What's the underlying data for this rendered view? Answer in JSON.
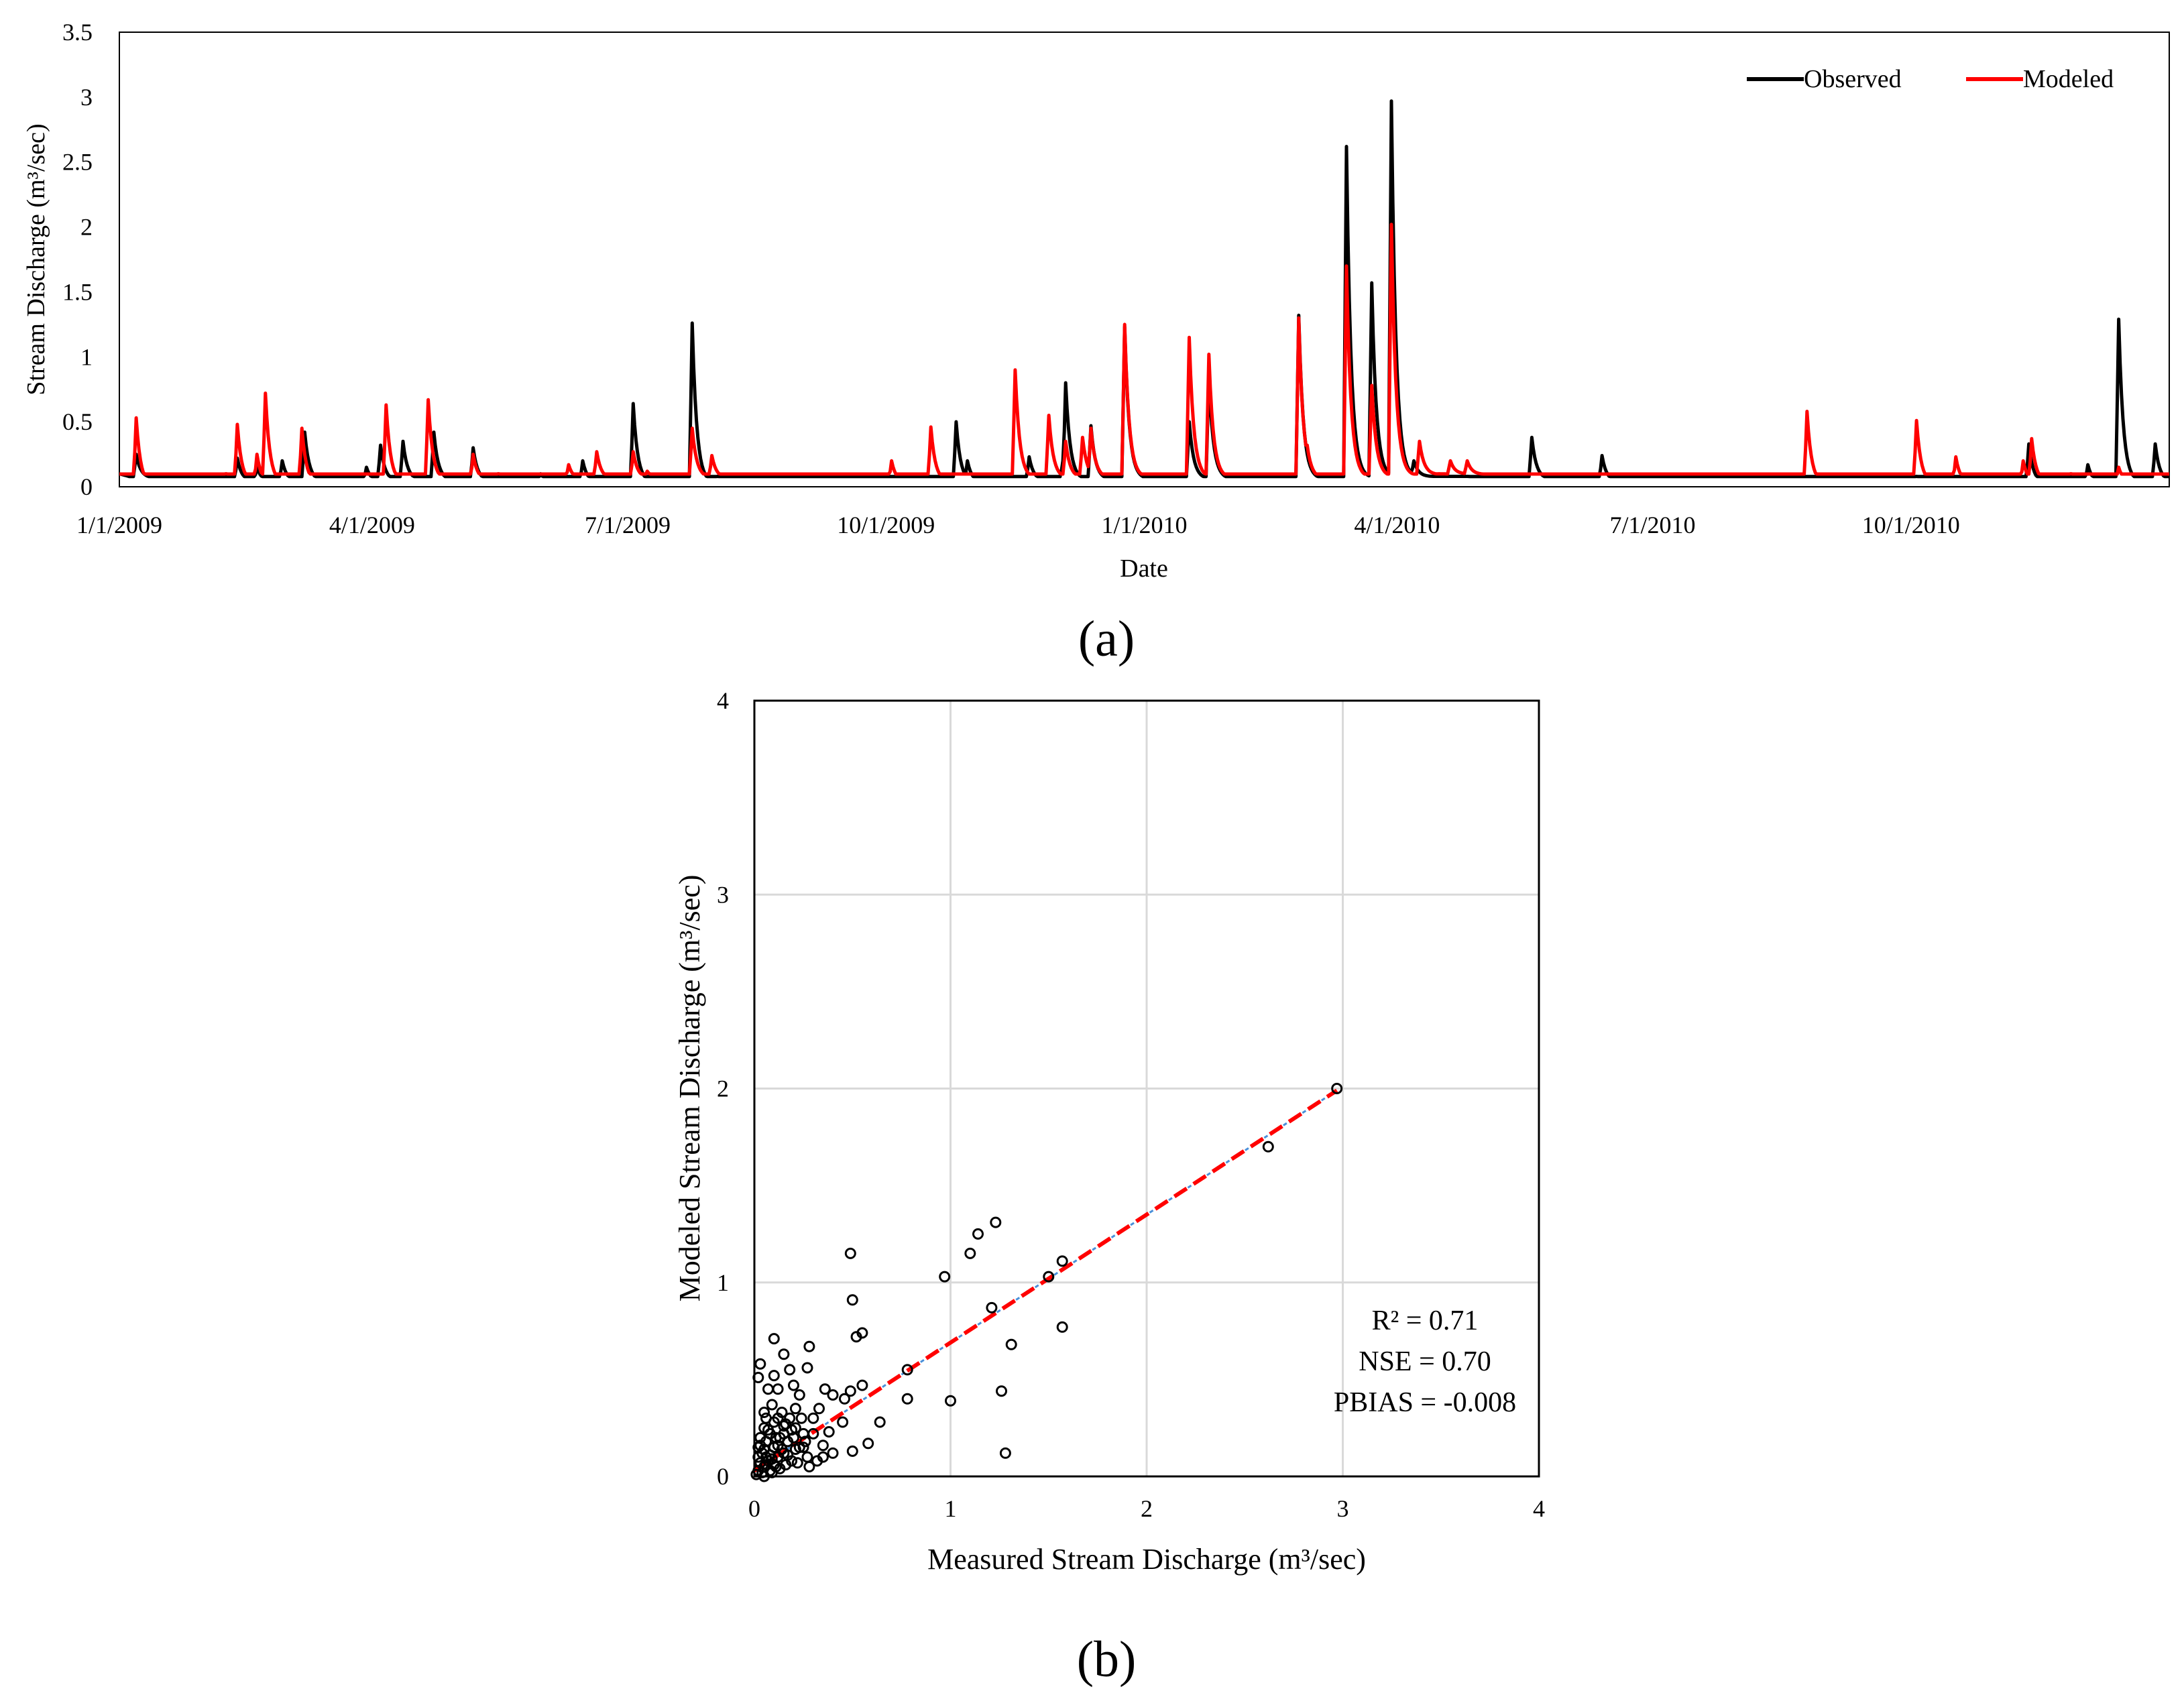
{
  "colors": {
    "observed": "#000000",
    "modeled": "#ff0000",
    "trend_red": "#ff0000",
    "trend_blue": "#4a90d9",
    "grid": "#d9d9d9"
  },
  "chart_data": [
    {
      "type": "line",
      "panel_label": "(a)",
      "xlabel": "Date",
      "ylabel": "Stream Discharge  (m³/sec)",
      "ylim": [
        0,
        3.5
      ],
      "yticks": [
        "0",
        "0.5",
        "1",
        "1.5",
        "2",
        "2.5",
        "3",
        "3.5"
      ],
      "xlim": [
        0,
        730
      ],
      "xticks": [
        {
          "label": "1/1/2009",
          "day": 0
        },
        {
          "label": "4/1/2009",
          "day": 90
        },
        {
          "label": "7/1/2009",
          "day": 181
        },
        {
          "label": "10/1/2009",
          "day": 273
        },
        {
          "label": "1/1/2010",
          "day": 365
        },
        {
          "label": "4/1/2010",
          "day": 455
        },
        {
          "label": "7/1/2010",
          "day": 546
        },
        {
          "label": "10/1/2010",
          "day": 638
        }
      ],
      "legend_position": "top-right",
      "series": [
        {
          "name": "Observed",
          "baseline": [
            [
              0,
              0.1
            ],
            [
              5,
              0.07
            ],
            [
              12,
              0.05
            ],
            [
              30,
              0.04
            ],
            [
              90,
              0.04
            ],
            [
              100,
              0.05
            ],
            [
              140,
              0.04
            ],
            [
              180,
              0.03
            ],
            [
              270,
              0.02
            ],
            [
              300,
              0.03
            ],
            [
              330,
              0.05
            ],
            [
              365,
              0.06
            ],
            [
              420,
              0.06
            ],
            [
              465,
              0.08
            ],
            [
              480,
              0.08
            ],
            [
              490,
              0.07
            ],
            [
              500,
              0.06
            ],
            [
              540,
              0.03
            ],
            [
              600,
              0.02
            ],
            [
              660,
              0.02
            ],
            [
              700,
              0.03
            ],
            [
              730,
              0.04
            ]
          ],
          "peaks": [
            [
              6,
              0.25
            ],
            [
              28,
              0.05
            ],
            [
              42,
              0.22
            ],
            [
              49,
              0.15
            ],
            [
              58,
              0.2
            ],
            [
              66,
              0.42
            ],
            [
              88,
              0.15
            ],
            [
              93,
              0.32
            ],
            [
              101,
              0.35
            ],
            [
              112,
              0.42
            ],
            [
              126,
              0.3
            ],
            [
              150,
              0.1
            ],
            [
              165,
              0.2
            ],
            [
              183,
              0.64
            ],
            [
              204,
              1.26
            ],
            [
              213,
              0.08
            ],
            [
              298,
              0.5
            ],
            [
              302,
              0.2
            ],
            [
              324,
              0.23
            ],
            [
              336,
              0.2
            ],
            [
              337,
              0.8
            ],
            [
              346,
              0.47
            ],
            [
              358,
              1.23
            ],
            [
              381,
              0.5
            ],
            [
              388,
              0.85
            ],
            [
              420,
              1.32
            ],
            [
              437,
              2.62
            ],
            [
              446,
              1.57
            ],
            [
              453,
              2.97
            ],
            [
              461,
              0.2
            ],
            [
              503,
              0.38
            ],
            [
              528,
              0.24
            ],
            [
              640,
              0.08
            ],
            [
              680,
              0.33
            ],
            [
              701,
              0.17
            ],
            [
              712,
              1.29
            ],
            [
              725,
              0.33
            ]
          ]
        },
        {
          "name": "Modeled",
          "baseline": [
            [
              0,
              0.0
            ],
            [
              30,
              0.0
            ],
            [
              40,
              0.02
            ],
            [
              90,
              0.02
            ],
            [
              110,
              0.04
            ],
            [
              150,
              0.05
            ],
            [
              180,
              0.06
            ],
            [
              200,
              0.07
            ],
            [
              240,
              0.05
            ],
            [
              280,
              0.03
            ],
            [
              320,
              0.06
            ],
            [
              365,
              0.07
            ],
            [
              430,
              0.06
            ],
            [
              470,
              0.1
            ],
            [
              490,
              0.09
            ],
            [
              500,
              0.06
            ],
            [
              530,
              0.04
            ],
            [
              560,
              0.03
            ],
            [
              600,
              0.02
            ],
            [
              690,
              0.03
            ],
            [
              730,
              0.03
            ]
          ],
          "peaks": [
            [
              6,
              0.53
            ],
            [
              38,
              0.1
            ],
            [
              42,
              0.48
            ],
            [
              49,
              0.25
            ],
            [
              52,
              0.72
            ],
            [
              65,
              0.45
            ],
            [
              95,
              0.63
            ],
            [
              110,
              0.67
            ],
            [
              126,
              0.25
            ],
            [
              135,
              0.1
            ],
            [
              160,
              0.17
            ],
            [
              170,
              0.27
            ],
            [
              183,
              0.27
            ],
            [
              188,
              0.12
            ],
            [
              204,
              0.45
            ],
            [
              211,
              0.24
            ],
            [
              275,
              0.2
            ],
            [
              289,
              0.46
            ],
            [
              319,
              0.9
            ],
            [
              331,
              0.55
            ],
            [
              337,
              0.35
            ],
            [
              343,
              0.38
            ],
            [
              346,
              0.45
            ],
            [
              358,
              1.25
            ],
            [
              381,
              1.15
            ],
            [
              388,
              1.02
            ],
            [
              420,
              1.3
            ],
            [
              423,
              0.32
            ],
            [
              437,
              1.7
            ],
            [
              446,
              0.78
            ],
            [
              453,
              2.02
            ],
            [
              463,
              0.35
            ],
            [
              474,
              0.2
            ],
            [
              480,
              0.2
            ],
            [
              601,
              0.58
            ],
            [
              640,
              0.51
            ],
            [
              654,
              0.23
            ],
            [
              678,
              0.2
            ],
            [
              681,
              0.37
            ],
            [
              695,
              0.1
            ],
            [
              712,
              0.15
            ]
          ]
        }
      ]
    },
    {
      "type": "scatter",
      "panel_label": "(b)",
      "xlabel": "Measured Stream Discharge (m³/sec)",
      "ylabel": "Modeled Stream Discharge (m³/sec)",
      "xlim": [
        0,
        4
      ],
      "ylim": [
        0,
        4
      ],
      "xticks": [
        "0",
        "1",
        "2",
        "3",
        "4"
      ],
      "yticks": [
        "0",
        "1",
        "2",
        "3",
        "4"
      ],
      "grid": true,
      "stats": {
        "r2": "R² = 0.71",
        "nse": "NSE = 0.70",
        "pbias": "PBIAS = -0.008"
      },
      "trendline": {
        "slope": 0.66,
        "intercept": 0.03
      },
      "points": [
        [
          2.97,
          2.0
        ],
        [
          2.62,
          1.7
        ],
        [
          1.57,
          1.11
        ],
        [
          1.5,
          1.03
        ],
        [
          1.57,
          0.77
        ],
        [
          1.23,
          1.31
        ],
        [
          1.14,
          1.25
        ],
        [
          1.1,
          1.15
        ],
        [
          1.21,
          0.87
        ],
        [
          0.97,
          1.03
        ],
        [
          1.0,
          0.39
        ],
        [
          1.31,
          0.68
        ],
        [
          1.26,
          0.44
        ],
        [
          1.28,
          0.12
        ],
        [
          0.49,
          1.15
        ],
        [
          0.5,
          0.91
        ],
        [
          0.55,
          0.74
        ],
        [
          0.52,
          0.72
        ],
        [
          0.78,
          0.55
        ],
        [
          0.78,
          0.4
        ],
        [
          0.64,
          0.28
        ],
        [
          0.55,
          0.47
        ],
        [
          0.58,
          0.17
        ],
        [
          0.49,
          0.44
        ],
        [
          0.46,
          0.4
        ],
        [
          0.5,
          0.13
        ],
        [
          0.45,
          0.28
        ],
        [
          0.4,
          0.42
        ],
        [
          0.36,
          0.45
        ],
        [
          0.33,
          0.35
        ],
        [
          0.1,
          0.71
        ],
        [
          0.03,
          0.58
        ],
        [
          0.02,
          0.51
        ],
        [
          0.1,
          0.52
        ],
        [
          0.15,
          0.63
        ],
        [
          0.18,
          0.55
        ],
        [
          0.28,
          0.67
        ],
        [
          0.2,
          0.47
        ],
        [
          0.07,
          0.45
        ],
        [
          0.12,
          0.45
        ],
        [
          0.27,
          0.56
        ],
        [
          0.09,
          0.37
        ],
        [
          0.05,
          0.33
        ],
        [
          0.12,
          0.3
        ],
        [
          0.21,
          0.35
        ],
        [
          0.23,
          0.42
        ],
        [
          0.15,
          0.26
        ],
        [
          0.3,
          0.22
        ],
        [
          0.3,
          0.3
        ],
        [
          0.38,
          0.23
        ],
        [
          0.35,
          0.16
        ],
        [
          0.25,
          0.15
        ],
        [
          0.32,
          0.08
        ],
        [
          0.28,
          0.05
        ],
        [
          0.4,
          0.12
        ],
        [
          0.35,
          0.1
        ],
        [
          0.2,
          0.2
        ],
        [
          0.05,
          0.05
        ],
        [
          0.02,
          0.03
        ],
        [
          0.04,
          0.12
        ],
        [
          0.06,
          0.18
        ],
        [
          0.08,
          0.22
        ],
        [
          0.1,
          0.15
        ],
        [
          0.12,
          0.1
        ],
        [
          0.03,
          0.2
        ],
        [
          0.05,
          0.25
        ],
        [
          0.07,
          0.08
        ],
        [
          0.09,
          0.02
        ],
        [
          0.11,
          0.05
        ],
        [
          0.13,
          0.2
        ],
        [
          0.15,
          0.12
        ],
        [
          0.17,
          0.18
        ],
        [
          0.19,
          0.08
        ],
        [
          0.21,
          0.25
        ],
        [
          0.23,
          0.15
        ],
        [
          0.25,
          0.22
        ],
        [
          0.27,
          0.1
        ],
        [
          0.14,
          0.33
        ],
        [
          0.06,
          0.3
        ],
        [
          0.02,
          0.1
        ],
        [
          0.04,
          0.02
        ],
        [
          0.06,
          0.06
        ],
        [
          0.08,
          0.11
        ],
        [
          0.1,
          0.28
        ],
        [
          0.12,
          0.16
        ],
        [
          0.16,
          0.06
        ],
        [
          0.18,
          0.3
        ],
        [
          0.22,
          0.07
        ],
        [
          0.24,
          0.3
        ],
        [
          0.26,
          0.18
        ],
        [
          0.01,
          0.01
        ],
        [
          0.03,
          0.07
        ],
        [
          0.05,
          0.14
        ],
        [
          0.07,
          0.24
        ],
        [
          0.09,
          0.09
        ],
        [
          0.11,
          0.2
        ],
        [
          0.13,
          0.04
        ],
        [
          0.15,
          0.22
        ],
        [
          0.17,
          0.11
        ],
        [
          0.19,
          0.24
        ],
        [
          0.21,
          0.14
        ],
        [
          0.03,
          0.16
        ],
        [
          0.08,
          0.03
        ],
        [
          0.1,
          0.06
        ],
        [
          0.05,
          0.0
        ],
        [
          0.06,
          0.1
        ],
        [
          0.02,
          0.15
        ],
        [
          0.14,
          0.14
        ],
        [
          0.16,
          0.27
        ]
      ]
    }
  ]
}
